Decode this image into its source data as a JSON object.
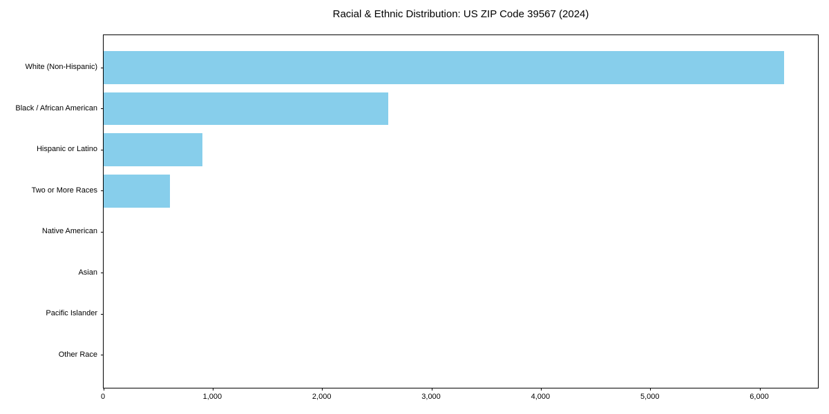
{
  "chart_data": {
    "type": "bar",
    "orientation": "horizontal",
    "title": "Racial & Ethnic Distribution: US ZIP Code 39567 (2024)",
    "categories": [
      "White (Non-Hispanic)",
      "Black / African American",
      "Hispanic or Latino",
      "Two or More Races",
      "Native American",
      "Asian",
      "Pacific Islander",
      "Other Race"
    ],
    "values": [
      6220,
      2600,
      905,
      605,
      0,
      0,
      0,
      0
    ],
    "xlabel": "",
    "ylabel": "",
    "xlim": [
      0,
      6530
    ],
    "x_ticks": [
      0,
      1000,
      2000,
      3000,
      4000,
      5000,
      6000
    ],
    "x_tick_labels": [
      "0",
      "1,000",
      "2,000",
      "3,000",
      "4,000",
      "5,000",
      "6,000"
    ],
    "bar_color": "#87CEEB",
    "axis_color": "#000000",
    "text_color": "#000000",
    "background_color": "#ffffff",
    "grid": false,
    "legend": null,
    "bar_relative_height": 0.8,
    "y_edge_padding_units": 0.79
  }
}
